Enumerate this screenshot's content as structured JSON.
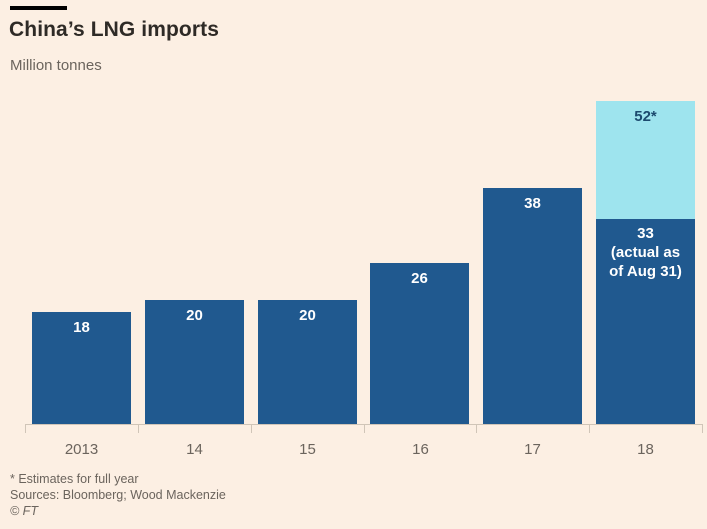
{
  "header": {
    "title": "China’s LNG imports",
    "subtitle": "Million tonnes"
  },
  "colors": {
    "background": "#FCEFE3",
    "bar_dark_blue": "#20598F",
    "bar_light_blue": "#9EE4EE",
    "value_label_light": "#FFFFFF",
    "value_label_dark": "#1C4A6E",
    "axis_line": "#D0C5B8",
    "text_primary": "#2E2A26",
    "text_secondary": "#6B645D"
  },
  "chart_data": {
    "type": "bar",
    "stacked": true,
    "title": "China’s LNG imports",
    "subtitle": "Million tonnes",
    "ylabel": "Million tonnes",
    "xlabel": "",
    "categories": [
      "2013",
      "14",
      "15",
      "16",
      "17",
      "18"
    ],
    "series": [
      {
        "name": "Actual imports",
        "values": [
          18,
          20,
          20,
          26,
          38,
          33
        ]
      },
      {
        "name": "Full-year estimate",
        "values": [
          null,
          null,
          null,
          null,
          null,
          52
        ]
      }
    ],
    "bar_labels": [
      "18",
      "20",
      "20",
      "26",
      "38",
      "33"
    ],
    "last_bar_annotation": [
      "33",
      "(actual as",
      "of Aug 31)"
    ],
    "estimate_label": "52*",
    "ylim": [
      0,
      52
    ],
    "grid": false,
    "legend": "none"
  },
  "footer": {
    "note": "* Estimates for full year",
    "sources": "Sources: Bloomberg; Wood Mackenzie",
    "credit": "© FT"
  }
}
